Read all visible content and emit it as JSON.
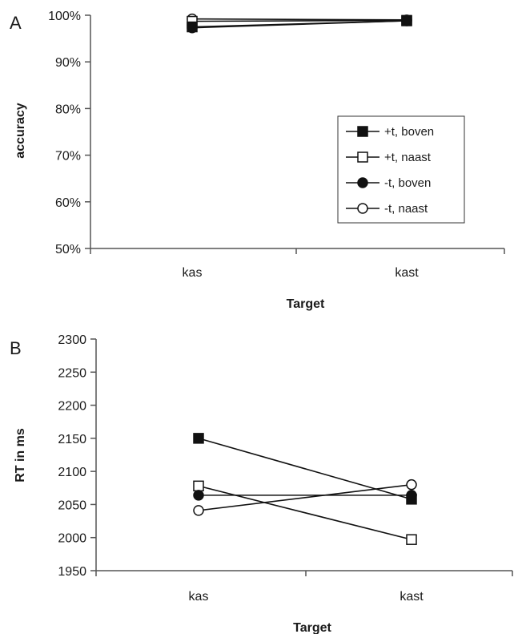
{
  "chart_data": [
    {
      "panel": "A",
      "type": "line",
      "title": "",
      "xlabel": "Target",
      "ylabel": "accuracy",
      "categories": [
        "kas",
        "kast"
      ],
      "y_tick_labels": [
        "50%",
        "60%",
        "70%",
        "80%",
        "90%",
        "100%"
      ],
      "ylim": [
        50,
        100
      ],
      "grid": false,
      "legend_placement": "center-right",
      "series": [
        {
          "name": "+t, boven",
          "marker": "filled-square",
          "values": [
            97.5,
            98.8
          ]
        },
        {
          "name": "+t, naast",
          "marker": "open-square",
          "values": [
            98.7,
            98.9
          ]
        },
        {
          "name": "-t, boven",
          "marker": "filled-circle",
          "values": [
            97.3,
            98.8
          ]
        },
        {
          "name": "-t, naast",
          "marker": "open-circle",
          "values": [
            99.2,
            99.0
          ]
        }
      ]
    },
    {
      "panel": "B",
      "type": "line",
      "title": "",
      "xlabel": "Target",
      "ylabel": "RT in ms",
      "categories": [
        "kas",
        "kast"
      ],
      "y_tick_labels": [
        "1950",
        "2000",
        "2050",
        "2100",
        "2150",
        "2200",
        "2250",
        "2300"
      ],
      "ylim": [
        1950,
        2300
      ],
      "grid": false,
      "legend_placement": "none",
      "series": [
        {
          "name": "+t, boven",
          "marker": "filled-square",
          "values": [
            2150,
            2058
          ]
        },
        {
          "name": "+t, naast",
          "marker": "open-square",
          "values": [
            2078,
            1997
          ]
        },
        {
          "name": "-t, boven",
          "marker": "filled-circle",
          "values": [
            2064,
            2064
          ]
        },
        {
          "name": "-t, naast",
          "marker": "open-circle",
          "values": [
            2041,
            2080
          ]
        }
      ]
    }
  ]
}
